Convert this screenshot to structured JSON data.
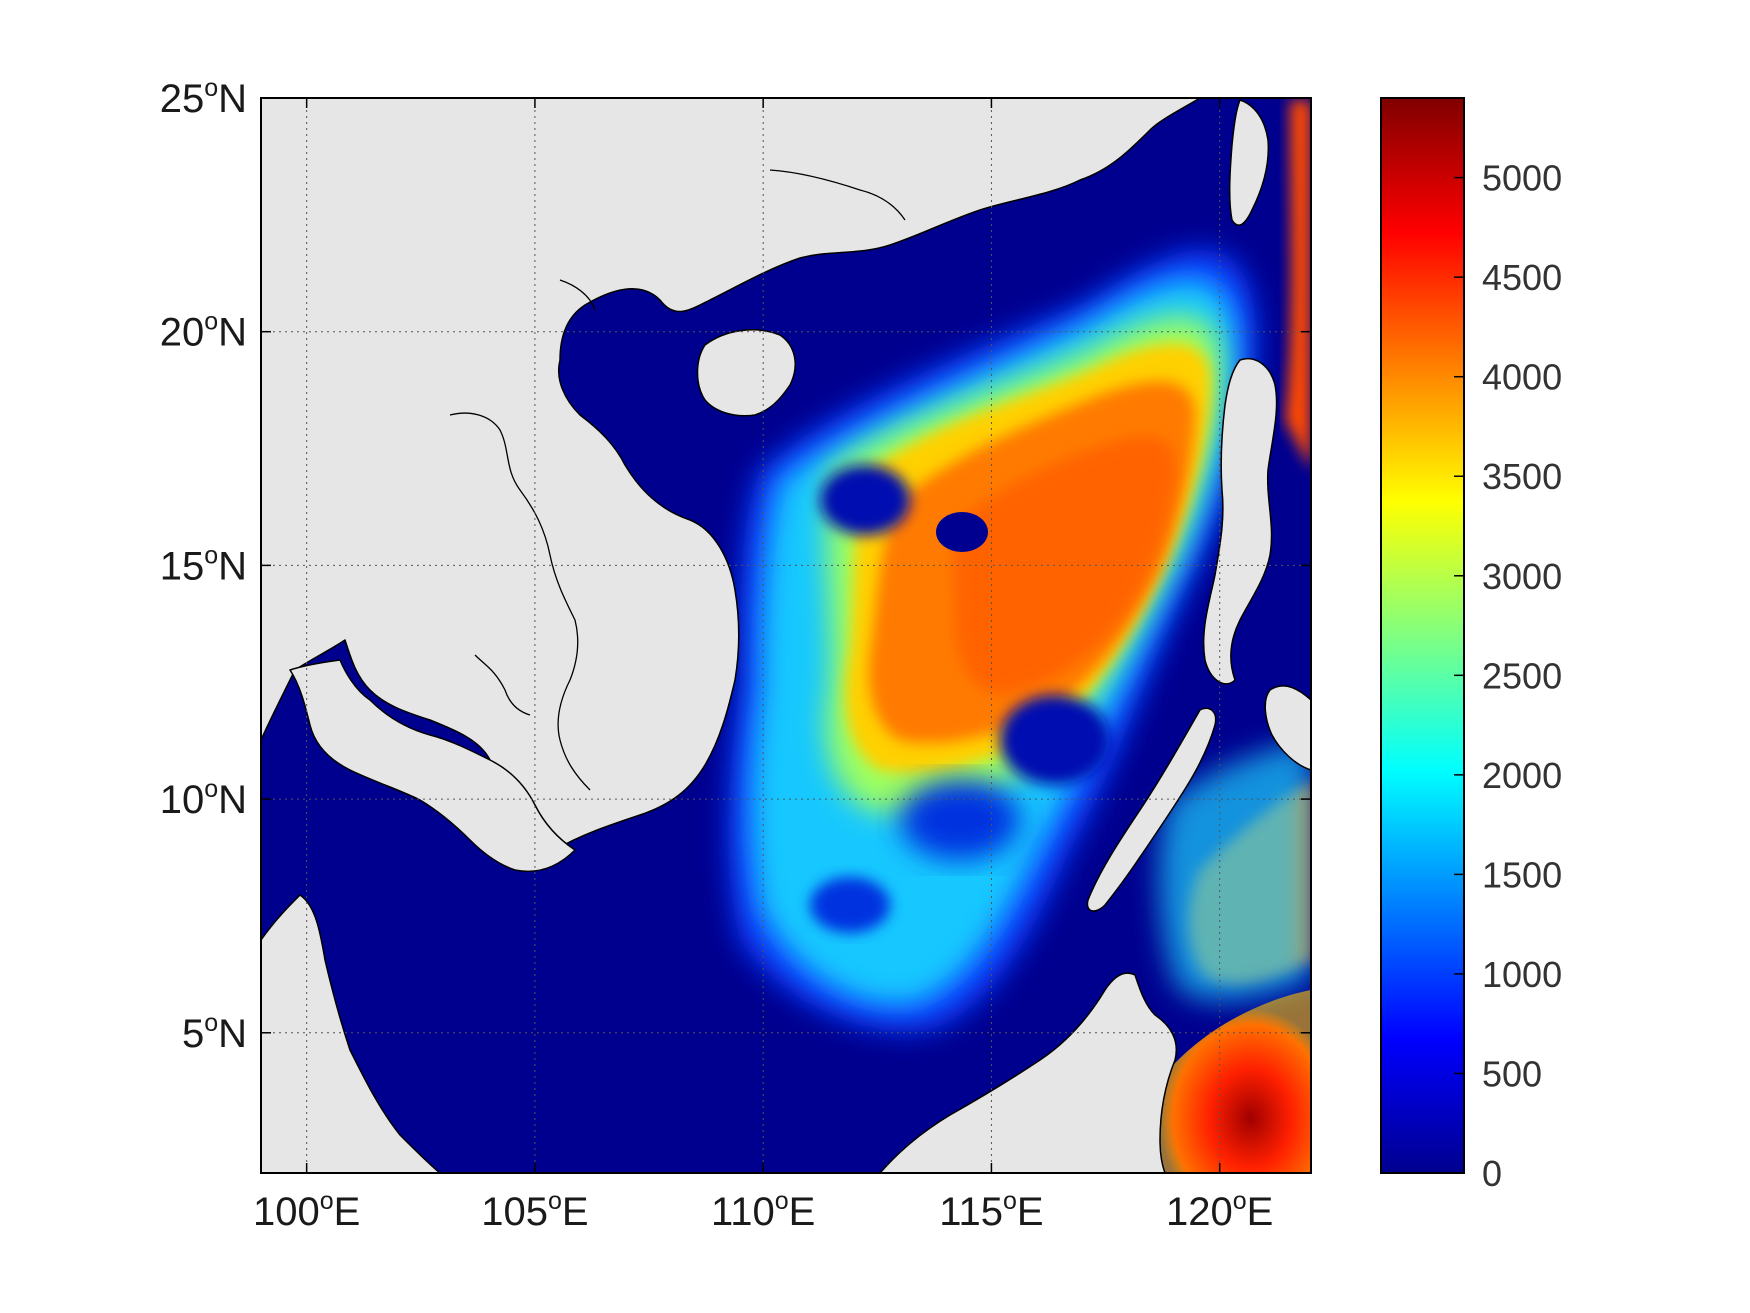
{
  "map": {
    "region": {
      "lon_min": 99,
      "lon_max": 122,
      "lat_min": 2,
      "lat_max": 25
    },
    "grid": true,
    "x_ticks": [
      {
        "value": 100,
        "num": "100",
        "deg": "o",
        "hemi": "E"
      },
      {
        "value": 105,
        "num": "105",
        "deg": "o",
        "hemi": "E"
      },
      {
        "value": 110,
        "num": "110",
        "deg": "o",
        "hemi": "E"
      },
      {
        "value": 115,
        "num": "115",
        "deg": "o",
        "hemi": "E"
      },
      {
        "value": 120,
        "num": "120",
        "deg": "o",
        "hemi": "E"
      }
    ],
    "y_ticks": [
      {
        "value": 25,
        "num": "25",
        "deg": "o",
        "hemi": "N"
      },
      {
        "value": 20,
        "num": "20",
        "deg": "o",
        "hemi": "N"
      },
      {
        "value": 15,
        "num": "15",
        "deg": "o",
        "hemi": "N"
      },
      {
        "value": 10,
        "num": "10",
        "deg": "o",
        "hemi": "N"
      },
      {
        "value": 5,
        "num": "5",
        "deg": "o",
        "hemi": "N"
      }
    ],
    "colors": {
      "land": "#e6e6e6",
      "coastline": "#000000",
      "ocean_shallow": "#00008f",
      "frame": "#000000"
    }
  },
  "colorbar": {
    "colormap": "jet",
    "min": 0,
    "max": 5400,
    "ticks": [
      {
        "value": 0,
        "label": "0"
      },
      {
        "value": 500,
        "label": "500"
      },
      {
        "value": 1000,
        "label": "1000"
      },
      {
        "value": 1500,
        "label": "1500"
      },
      {
        "value": 2000,
        "label": "2000"
      },
      {
        "value": 2500,
        "label": "2500"
      },
      {
        "value": 3000,
        "label": "3000"
      },
      {
        "value": 3500,
        "label": "3500"
      },
      {
        "value": 4000,
        "label": "4000"
      },
      {
        "value": 4500,
        "label": "4500"
      },
      {
        "value": 5000,
        "label": "5000"
      }
    ],
    "stops": [
      "#00008f",
      "#0000ff",
      "#0080ff",
      "#00ffff",
      "#80ff80",
      "#ffff00",
      "#ff8000",
      "#ff0000",
      "#800000"
    ]
  }
}
